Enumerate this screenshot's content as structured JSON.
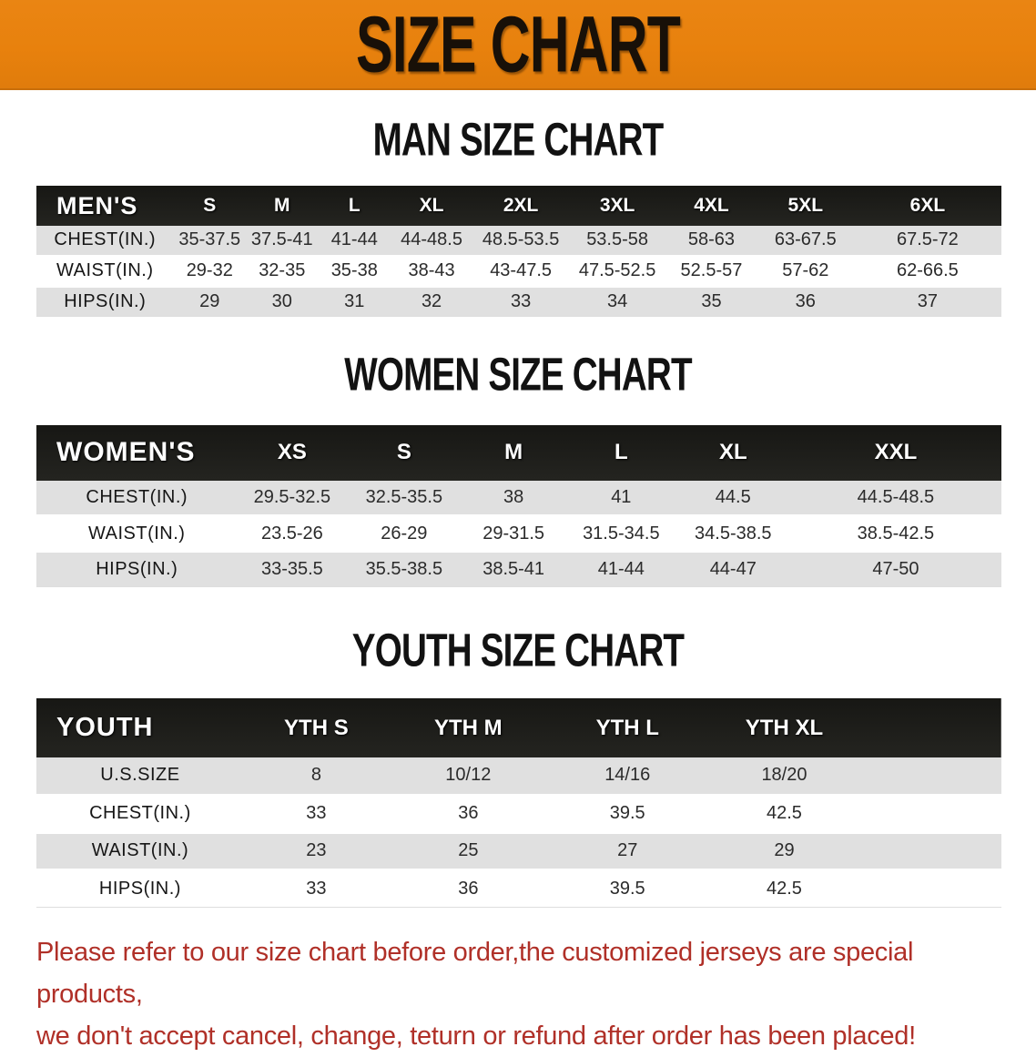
{
  "banner": {
    "title": "SIZE CHART",
    "bg_color": "#E8810D",
    "text_color": "#181008"
  },
  "tables": {
    "men": {
      "heading": "MAN SIZE CHART",
      "corner_label": "MEN'S",
      "sizes": [
        "S",
        "M",
        "L",
        "XL",
        "2XL",
        "3XL",
        "4XL",
        "5XL",
        "6XL"
      ],
      "rows": [
        {
          "label": "CHEST(IN.)",
          "values": [
            "35-37.5",
            "37.5-41",
            "41-44",
            "44-48.5",
            "48.5-53.5",
            "53.5-58",
            "58-63",
            "63-67.5",
            "67.5-72"
          ]
        },
        {
          "label": "WAIST(IN.)",
          "values": [
            "29-32",
            "32-35",
            "35-38",
            "38-43",
            "43-47.5",
            "47.5-52.5",
            "52.5-57",
            "57-62",
            "62-66.5"
          ]
        },
        {
          "label": "HIPS(IN.)",
          "values": [
            "29",
            "30",
            "31",
            "32",
            "33",
            "34",
            "35",
            "36",
            "37"
          ]
        }
      ]
    },
    "women": {
      "heading": "WOMEN SIZE CHART",
      "corner_label": "WOMEN'S",
      "sizes": [
        "XS",
        "S",
        "M",
        "L",
        "XL",
        "XXL"
      ],
      "rows": [
        {
          "label": "CHEST(IN.)",
          "values": [
            "29.5-32.5",
            "32.5-35.5",
            "38",
            "41",
            "44.5",
            "44.5-48.5"
          ]
        },
        {
          "label": "WAIST(IN.)",
          "values": [
            "23.5-26",
            "26-29",
            "29-31.5",
            "31.5-34.5",
            "34.5-38.5",
            "38.5-42.5"
          ]
        },
        {
          "label": "HIPS(IN.)",
          "values": [
            "33-35.5",
            "35.5-38.5",
            "38.5-41",
            "41-44",
            "44-47",
            "47-50"
          ]
        }
      ]
    },
    "youth": {
      "heading": "YOUTH SIZE CHART",
      "corner_label": "YOUTH",
      "sizes": [
        "YTH S",
        "YTH M",
        "YTH L",
        "YTH XL"
      ],
      "rows": [
        {
          "label": "U.S.SIZE",
          "values": [
            "8",
            "10/12",
            "14/16",
            "18/20"
          ]
        },
        {
          "label": "CHEST(IN.)",
          "values": [
            "33",
            "36",
            "39.5",
            "42.5"
          ]
        },
        {
          "label": "WAIST(IN.)",
          "values": [
            "23",
            "25",
            "27",
            "29"
          ]
        },
        {
          "label": "HIPS(IN.)",
          "values": [
            "33",
            "36",
            "39.5",
            "42.5"
          ]
        }
      ]
    }
  },
  "table_colors": {
    "header_bg": "#1B1B18",
    "header_text": "#FFFFFF",
    "row_stripe": "#E0E0E0",
    "row_white": "#FFFFFF"
  },
  "disclaimer": {
    "color": "#B03028",
    "line1": "Please refer to our size chart before order,the customized jerseys are special products,",
    "line2": "we don't accept cancel, change, teturn or refund after order has been placed!"
  }
}
